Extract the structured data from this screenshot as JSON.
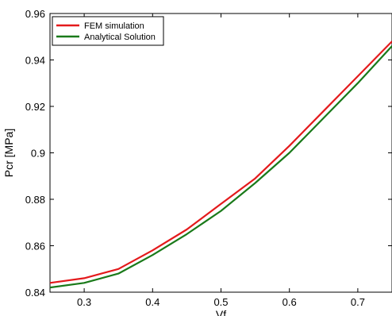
{
  "chart_data": {
    "type": "line",
    "title": "",
    "xlabel": "Vf",
    "ylabel": "Pcr [MPa]",
    "xlim": [
      0.25,
      0.75
    ],
    "ylim": [
      0.84,
      0.96
    ],
    "xticks": [
      "0.3",
      "0.4",
      "0.5",
      "0.6",
      "0.7"
    ],
    "xtick_values": [
      0.3,
      0.4,
      0.5,
      0.6,
      0.7
    ],
    "yticks": [
      "0.84",
      "0.86",
      "0.88",
      "0.9",
      "0.92",
      "0.94",
      "0.96"
    ],
    "ytick_values": [
      0.84,
      0.86,
      0.88,
      0.9,
      0.92,
      0.94,
      0.96
    ],
    "grid": false,
    "legend_position": "top-left",
    "x": [
      0.25,
      0.3,
      0.35,
      0.4,
      0.45,
      0.5,
      0.55,
      0.6,
      0.65,
      0.7,
      0.75
    ],
    "series": [
      {
        "name": "FEM simulation",
        "color": "#e41a1c",
        "values": [
          0.844,
          0.846,
          0.85,
          0.858,
          0.867,
          0.878,
          0.889,
          0.903,
          0.918,
          0.933,
          0.948
        ]
      },
      {
        "name": "Analytical Solution",
        "color": "#1a7a1a",
        "values": [
          0.842,
          0.844,
          0.848,
          0.856,
          0.865,
          0.875,
          0.887,
          0.9,
          0.915,
          0.93,
          0.946
        ]
      }
    ]
  }
}
